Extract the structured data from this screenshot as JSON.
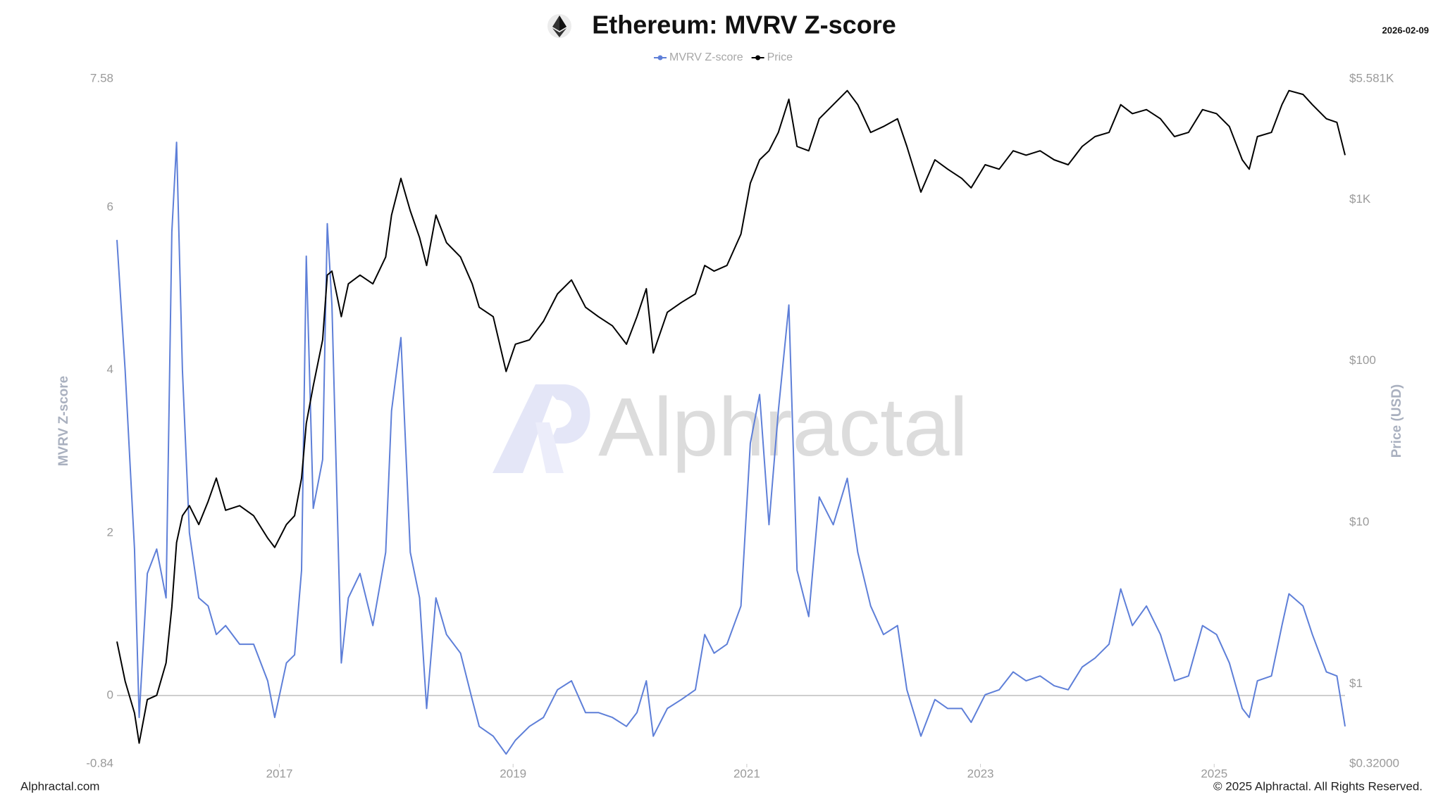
{
  "chart_data": {
    "type": "line",
    "title": "Ethereum: MVRV Z-score",
    "date": "2026-02-09",
    "y_label": "MVRV Z-score",
    "y2_label": "Price (USD)",
    "watermark": "Alphractal",
    "footer_left": "Alphractal.com",
    "footer_right": "© 2025 Alphractal. All Rights Reserved.",
    "legend": "top",
    "xlim": [
      2015.61,
      2026.12
    ],
    "xticks": [
      2017,
      2019,
      2021,
      2023,
      2025
    ],
    "ylim": [
      -0.84,
      7.58
    ],
    "yticks": [
      -0.84,
      0,
      2,
      4,
      6,
      7.58
    ],
    "y2lim": [
      0.32,
      5581
    ],
    "y2_scale": "log",
    "y2ticks": [
      {
        "value": 0.32,
        "label": "$0.32000"
      },
      {
        "value": 1,
        "label": "$1"
      },
      {
        "value": 10,
        "label": "$10"
      },
      {
        "value": 100,
        "label": "$100"
      },
      {
        "value": 1000,
        "label": "$1K"
      },
      {
        "value": 5581,
        "label": "$5.581K"
      }
    ],
    "x": [
      2015.61,
      2015.68,
      2015.76,
      2015.8,
      2015.87,
      2015.95,
      2016.03,
      2016.08,
      2016.12,
      2016.17,
      2016.23,
      2016.31,
      2016.39,
      2016.46,
      2016.54,
      2016.66,
      2016.78,
      2016.9,
      2016.96,
      2017.06,
      2017.13,
      2017.19,
      2017.23,
      2017.29,
      2017.37,
      2017.41,
      2017.45,
      2017.53,
      2017.59,
      2017.69,
      2017.8,
      2017.91,
      2017.96,
      2018.04,
      2018.12,
      2018.2,
      2018.26,
      2018.34,
      2018.43,
      2018.55,
      2018.65,
      2018.71,
      2018.83,
      2018.94,
      2019.02,
      2019.14,
      2019.26,
      2019.38,
      2019.5,
      2019.62,
      2019.73,
      2019.85,
      2019.97,
      2020.06,
      2020.14,
      2020.2,
      2020.32,
      2020.44,
      2020.56,
      2020.64,
      2020.72,
      2020.83,
      2020.95,
      2021.03,
      2021.11,
      2021.19,
      2021.27,
      2021.36,
      2021.43,
      2021.53,
      2021.62,
      2021.74,
      2021.86,
      2021.95,
      2022.06,
      2022.17,
      2022.29,
      2022.37,
      2022.49,
      2022.61,
      2022.72,
      2022.84,
      2022.92,
      2023.04,
      2023.16,
      2023.28,
      2023.39,
      2023.51,
      2023.63,
      2023.75,
      2023.87,
      2023.98,
      2024.1,
      2024.2,
      2024.3,
      2024.42,
      2024.54,
      2024.66,
      2024.78,
      2024.9,
      2025.02,
      2025.13,
      2025.24,
      2025.3,
      2025.37,
      2025.49,
      2025.58,
      2025.64,
      2025.76,
      2025.84,
      2025.96,
      2026.05,
      2026.12
    ],
    "series": [
      {
        "name": "MVRV Z-score",
        "color": "#5e7fd8",
        "values": [
          5.6,
          4.0,
          1.8,
          -0.27,
          1.5,
          1.8,
          1.2,
          5.7,
          6.8,
          4.0,
          2.0,
          1.2,
          1.1,
          0.75,
          0.86,
          0.63,
          0.63,
          0.18,
          -0.27,
          0.4,
          0.5,
          1.54,
          5.4,
          2.3,
          2.9,
          5.8,
          4.8,
          0.4,
          1.2,
          1.5,
          0.86,
          1.76,
          3.5,
          4.4,
          1.76,
          1.2,
          -0.16,
          1.2,
          0.75,
          0.52,
          -0.05,
          -0.38,
          -0.5,
          -0.72,
          -0.55,
          -0.38,
          -0.27,
          0.07,
          0.18,
          -0.21,
          -0.21,
          -0.27,
          -0.38,
          -0.21,
          0.18,
          -0.5,
          -0.16,
          -0.05,
          0.07,
          0.75,
          0.52,
          0.63,
          1.1,
          3.1,
          3.7,
          2.1,
          3.5,
          4.8,
          1.54,
          0.97,
          2.44,
          2.1,
          2.67,
          1.76,
          1.1,
          0.75,
          0.86,
          0.07,
          -0.5,
          -0.05,
          -0.16,
          -0.16,
          -0.33,
          0.01,
          0.07,
          0.29,
          0.18,
          0.24,
          0.12,
          0.07,
          0.35,
          0.46,
          0.63,
          1.31,
          0.86,
          1.1,
          0.75,
          0.18,
          0.24,
          0.86,
          0.75,
          0.4,
          -0.16,
          -0.27,
          0.18,
          0.24,
          0.86,
          1.25,
          1.1,
          0.75,
          0.29,
          0.24,
          -0.38
        ]
      },
      {
        "name": "Price",
        "color": "#000000",
        "axis": "y2",
        "values": [
          1.83,
          1.04,
          0.66,
          0.43,
          0.8,
          0.85,
          1.35,
          3.0,
          7.5,
          11,
          12.7,
          9.7,
          13.5,
          18.8,
          11.9,
          12.7,
          11,
          8,
          7,
          9.7,
          11,
          18.8,
          41,
          70,
          135,
          340,
          360,
          188,
          300,
          340,
          300,
          440,
          800,
          1350,
          850,
          580,
          390,
          800,
          540,
          440,
          300,
          215,
          188,
          86,
          127,
          135,
          176,
          260,
          317,
          215,
          188,
          165,
          127,
          188,
          280,
          112,
          200,
          230,
          260,
          390,
          360,
          390,
          610,
          1260,
          1760,
          2000,
          2600,
          4170,
          2130,
          2000,
          3160,
          3860,
          4720,
          3860,
          2600,
          2830,
          3160,
          2130,
          1110,
          1760,
          1540,
          1350,
          1180,
          1640,
          1540,
          2000,
          1880,
          2000,
          1760,
          1640,
          2130,
          2450,
          2600,
          3860,
          3400,
          3600,
          3160,
          2450,
          2600,
          3600,
          3400,
          2830,
          1760,
          1540,
          2450,
          2600,
          3860,
          4720,
          4470,
          3860,
          3160,
          3000,
          1880
        ]
      }
    ]
  }
}
